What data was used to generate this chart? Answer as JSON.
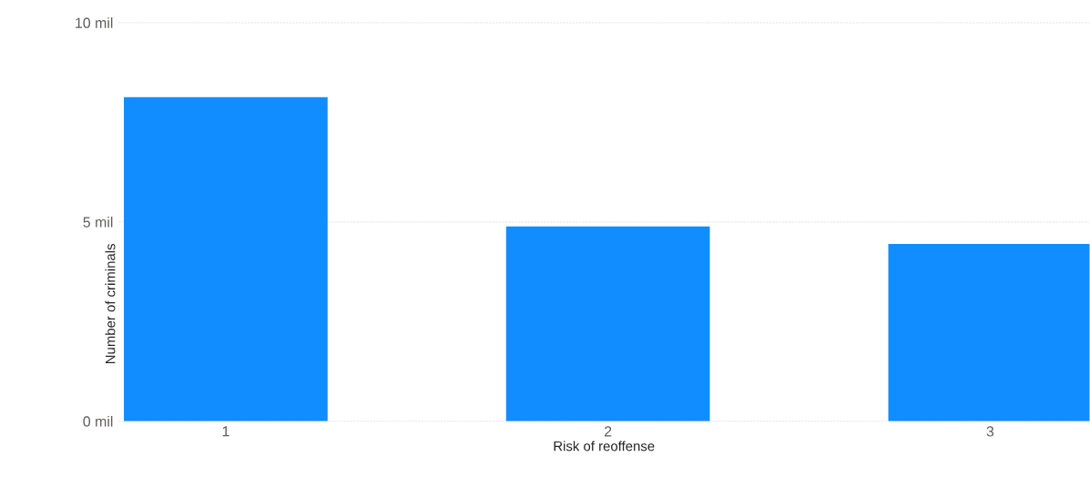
{
  "chart_data": {
    "type": "bar",
    "xlabel": "Risk of reoffense",
    "ylabel": "Number of criminals",
    "categories": [
      "1",
      "2",
      "3"
    ],
    "values": [
      8.13,
      4.89,
      4.45
    ],
    "color": "#118dff",
    "ylim": [
      0,
      10
    ],
    "yticks": [
      {
        "value": 0,
        "label": "0 mil"
      },
      {
        "value": 5,
        "label": "5 mil"
      },
      {
        "value": 10,
        "label": "10 mil"
      }
    ],
    "grid": "y"
  }
}
